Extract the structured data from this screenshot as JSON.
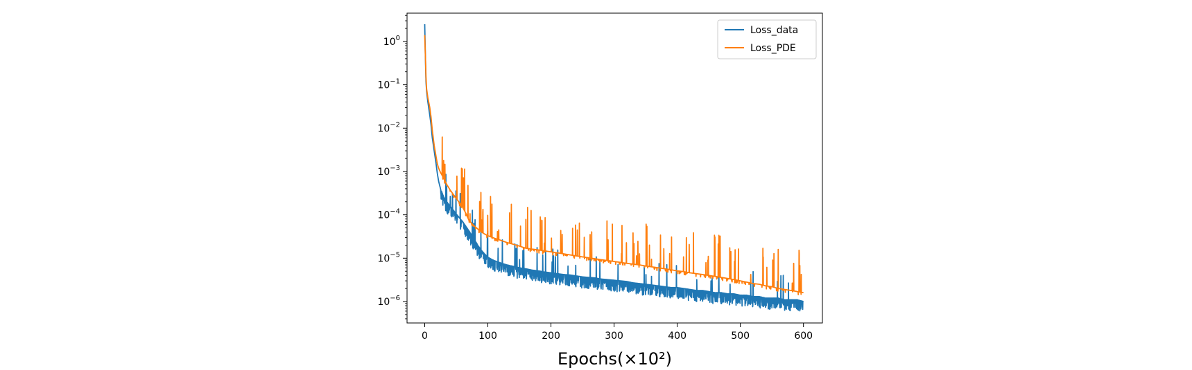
{
  "chart_data": {
    "type": "line",
    "title": "",
    "xlabel": "Epochs(×10²)",
    "ylabel": "",
    "xscale": "linear",
    "yscale": "log",
    "xlim": [
      -28,
      630
    ],
    "ylim": [
      3.2e-07,
      4.5
    ],
    "x_ticks": [
      {
        "value": 0,
        "label": "0"
      },
      {
        "value": 100,
        "label": "100"
      },
      {
        "value": 200,
        "label": "200"
      },
      {
        "value": 300,
        "label": "300"
      },
      {
        "value": 400,
        "label": "400"
      },
      {
        "value": 500,
        "label": "500"
      },
      {
        "value": 600,
        "label": "600"
      }
    ],
    "y_ticks": [
      {
        "value": 1,
        "base": "10",
        "exp": "0"
      },
      {
        "value": 0.1,
        "base": "10",
        "exp": "−1"
      },
      {
        "value": 0.01,
        "base": "10",
        "exp": "−2"
      },
      {
        "value": 0.001,
        "base": "10",
        "exp": "−3"
      },
      {
        "value": 0.0001,
        "base": "10",
        "exp": "−4"
      },
      {
        "value": 1e-05,
        "base": "10",
        "exp": "−5"
      },
      {
        "value": 1e-06,
        "base": "10",
        "exp": "−6"
      }
    ],
    "grid": false,
    "legend_position": "top-right",
    "series": [
      {
        "name": "Loss_data",
        "color": "#1f77b4",
        "x": [
          0,
          1,
          2,
          3,
          5,
          8,
          10,
          12,
          15,
          18,
          20,
          22,
          25,
          30,
          35,
          40,
          45,
          50,
          55,
          60,
          65,
          70,
          75,
          80,
          85,
          90,
          95,
          100,
          110,
          120,
          130,
          140,
          150,
          160,
          170,
          180,
          190,
          200,
          210,
          220,
          230,
          240,
          250,
          260,
          270,
          280,
          290,
          300,
          310,
          320,
          330,
          340,
          350,
          360,
          370,
          380,
          390,
          400,
          410,
          420,
          430,
          440,
          450,
          460,
          470,
          480,
          490,
          500,
          510,
          520,
          530,
          540,
          550,
          560,
          570,
          580,
          590,
          600
        ],
        "values": [
          2.5,
          0.5,
          0.12,
          0.07,
          0.04,
          0.02,
          0.012,
          0.006,
          0.003,
          0.0015,
          0.0009,
          0.0006,
          0.0004,
          0.00026,
          0.0002,
          0.00016,
          0.00013,
          0.000105,
          8.5e-05,
          7e-05,
          5.5e-05,
          4.3e-05,
          3.3e-05,
          2.5e-05,
          1.9e-05,
          1.5e-05,
          1.25e-05,
          1.05e-05,
          8.8e-06,
          7.8e-06,
          7e-06,
          6.5e-06,
          6e-06,
          5.7e-06,
          5.3e-06,
          5.1e-06,
          4.8e-06,
          4.6e-06,
          4.4e-06,
          4.2e-06,
          4.1e-06,
          3.9e-06,
          3.7e-06,
          3.6e-06,
          3.5e-06,
          3.3e-06,
          3.2e-06,
          3.1e-06,
          3e-06,
          2.9e-06,
          2.7e-06,
          2.6e-06,
          2.5e-06,
          2.4e-06,
          2.3e-06,
          2.2e-06,
          2.1e-06,
          2.1e-06,
          2e-06,
          1.9e-06,
          1.8e-06,
          1.8e-06,
          1.7e-06,
          1.6e-06,
          1.6e-06,
          1.5e-06,
          1.5e-06,
          1.4e-06,
          1.4e-06,
          1.3e-06,
          1.3e-06,
          1.2e-06,
          1.2e-06,
          1.2e-06,
          1.1e-06,
          1.1e-06,
          1.1e-06,
          1e-06
        ],
        "noise": "spiky"
      },
      {
        "name": "Loss_PDE",
        "color": "#ff7f0e",
        "x": [
          0,
          1,
          2,
          3,
          5,
          8,
          10,
          12,
          15,
          18,
          20,
          22,
          25,
          30,
          35,
          40,
          45,
          50,
          55,
          60,
          65,
          70,
          75,
          80,
          85,
          90,
          95,
          100,
          110,
          120,
          130,
          140,
          150,
          160,
          170,
          180,
          190,
          200,
          210,
          220,
          230,
          240,
          250,
          260,
          270,
          280,
          290,
          300,
          310,
          320,
          330,
          340,
          350,
          360,
          370,
          380,
          390,
          400,
          410,
          420,
          430,
          440,
          450,
          460,
          470,
          480,
          490,
          500,
          510,
          520,
          530,
          540,
          550,
          560,
          570,
          580,
          590,
          600
        ],
        "values": [
          1.4,
          0.5,
          0.15,
          0.08,
          0.05,
          0.03,
          0.018,
          0.009,
          0.004,
          0.0022,
          0.0015,
          0.0012,
          0.00095,
          0.0007,
          0.0005,
          0.00038,
          0.0003,
          0.00024,
          0.00019,
          0.00015,
          0.00011,
          7.5e-05,
          6.2e-05,
          5.3e-05,
          4.6e-05,
          4e-05,
          3.6e-05,
          3.3e-05,
          2.9e-05,
          2.6e-05,
          2.3e-05,
          2.1e-05,
          1.9e-05,
          1.7e-05,
          1.62e-05,
          1.55e-05,
          1.47e-05,
          1.4e-05,
          1.33e-05,
          1.26e-05,
          1.19e-05,
          1.13e-05,
          1.07e-05,
          1.02e-05,
          9.7e-06,
          9.2e-06,
          8.8e-06,
          8.4e-06,
          8e-06,
          7.6e-06,
          7.3e-06,
          7e-06,
          6.6e-06,
          6.3e-06,
          6e-06,
          5.7e-06,
          5.4e-06,
          5.1e-06,
          4.9e-06,
          4.6e-06,
          4.4e-06,
          4.2e-06,
          4e-06,
          3.8e-06,
          3.6e-06,
          3.4e-06,
          3.2e-06,
          3e-06,
          2.8e-06,
          2.6e-06,
          2.5e-06,
          2.3e-06,
          2.2e-06,
          2e-06,
          1.9e-06,
          1.8e-06,
          1.7e-06,
          1.6e-06
        ],
        "noise": "spiky"
      }
    ]
  }
}
